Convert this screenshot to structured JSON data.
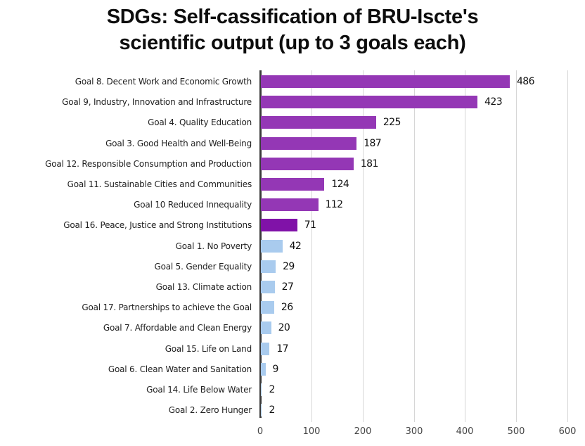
{
  "chart_data": {
    "type": "bar",
    "orientation": "horizontal",
    "title": "SDGs: Self-cassification of BRU-Iscte's scientific output (up to 3 goals each)",
    "title_lines": [
      "SDGs: Self-cassification of BRU-Iscte's",
      "scientific output (up to 3 goals each)"
    ],
    "xlabel": "",
    "ylabel": "",
    "xlim": [
      0,
      600
    ],
    "x_ticks": [
      "0",
      "100",
      "200",
      "300",
      "400",
      "500",
      "600"
    ],
    "grid": true,
    "legend": null,
    "categories": [
      "Goal 8. Decent Work and Economic Growth",
      "Goal 9, Industry, Innovation and Infrastructure",
      "Goal 4. Quality Education",
      "Goal 3. Good Health and Well-Being",
      "Goal 12. Responsible Consumption and Production",
      "Goal 11. Sustainable Cities and Communities",
      "Goal 10 Reduced Innequality",
      "Goal 16. Peace, Justice and Strong Institutions",
      "Goal 1. No Poverty",
      "Goal 5. Gender Equality",
      "Goal 13. Climate action",
      "Goal 17. Partnerships to achieve the Goal",
      "Goal 7. Affordable and Clean Energy",
      "Goal 15. Life on Land",
      "Goal 6. Clean Water and Sanitation",
      "Goal 14. Life Below Water",
      "Goal 2. Zero Hunger"
    ],
    "values": [
      486,
      423,
      225,
      187,
      181,
      124,
      112,
      71,
      42,
      29,
      27,
      26,
      20,
      17,
      9,
      2,
      2
    ],
    "value_labels": [
      "486",
      "423",
      "225",
      "187",
      "181",
      "124",
      "112",
      "71",
      "42",
      "29",
      "27",
      "26",
      "20",
      "17",
      "9",
      "2",
      "2"
    ],
    "colors": [
      "#9437b5",
      "#9437b5",
      "#9437b5",
      "#9437b5",
      "#9437b5",
      "#9437b5",
      "#9437b5",
      "#8012a8",
      "#a9cbee",
      "#a9cbee",
      "#a9cbee",
      "#a9cbee",
      "#a9cbee",
      "#a9cbee",
      "#a9cbee",
      "#a9cbee",
      "#a9cbee"
    ]
  }
}
